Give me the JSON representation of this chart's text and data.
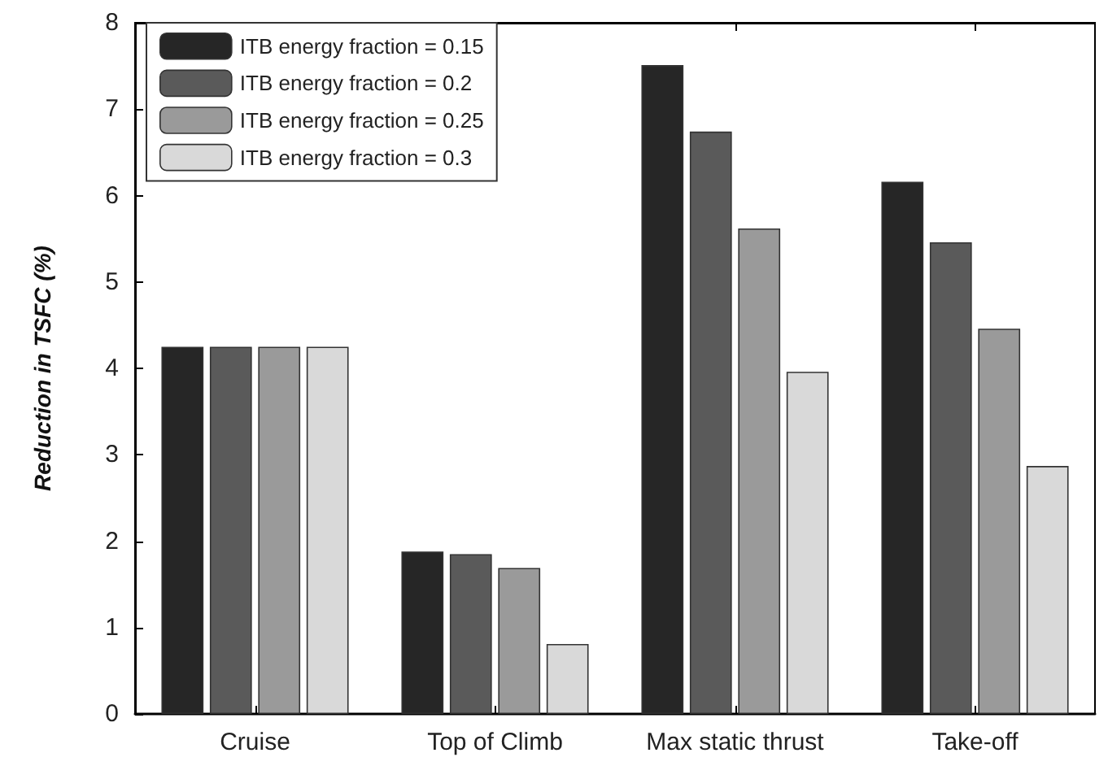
{
  "chart_data": {
    "type": "bar",
    "ylabel": "Reduction in TSFC (%)",
    "categories": [
      "Cruise",
      "Top of Climb",
      "Max static thrust",
      "Take-off"
    ],
    "series": [
      {
        "name": "ITB energy fraction = 0.15",
        "color": "#262626",
        "values": [
          4.25,
          1.88,
          7.51,
          6.16
        ]
      },
      {
        "name": "ITB energy fraction = 0.2",
        "color": "#5a5a5a",
        "values": [
          4.25,
          1.85,
          6.74,
          5.46
        ]
      },
      {
        "name": "ITB energy fraction = 0.25",
        "color": "#9a9a9a",
        "values": [
          4.25,
          1.69,
          5.62,
          4.46
        ]
      },
      {
        "name": "ITB energy fraction = 0.3",
        "color": "#d9d9d9",
        "values": [
          4.25,
          0.81,
          3.96,
          2.87
        ]
      }
    ],
    "ylim": [
      0,
      8
    ],
    "yticks": [
      0,
      1,
      2,
      3,
      4,
      5,
      6,
      7,
      8
    ],
    "grid": false,
    "legend": "top left"
  }
}
